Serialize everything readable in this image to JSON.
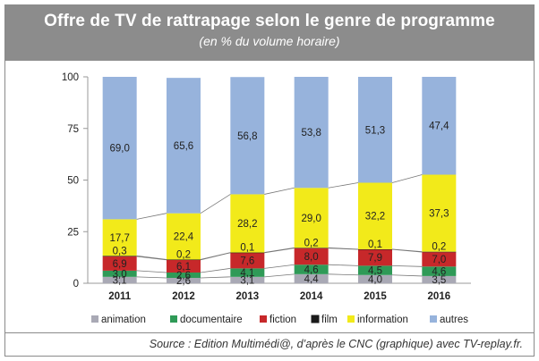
{
  "header": {
    "title": "Offre de TV de rattrapage selon le genre de programme",
    "subtitle": "(en % du volume horaire)"
  },
  "footer": {
    "source": "Source : Edition Multimédi@, d’après le CNC (graphique) avec TV-replay.fr."
  },
  "chart_data": {
    "type": "bar",
    "stacked": true,
    "categories": [
      "2011",
      "2012",
      "2013",
      "2014",
      "2015",
      "2016"
    ],
    "ylim": [
      0,
      100
    ],
    "yticks": [
      0,
      25,
      50,
      75,
      100
    ],
    "grid": false,
    "legend_position": "bottom",
    "series": [
      {
        "name": "animation",
        "color": "#a9a9b5",
        "values": [
          3.1,
          2.6,
          3.1,
          4.4,
          4.0,
          3.5
        ],
        "labels": [
          "3,1",
          "2,6",
          "3,1",
          "4,4",
          "4,0",
          "3,5"
        ]
      },
      {
        "name": "documentaire",
        "color": "#2f9a57",
        "values": [
          3.0,
          2.6,
          4.1,
          4.6,
          4.5,
          4.6
        ],
        "labels": [
          "3,0",
          "2,6",
          "4,1",
          "4,6",
          "4,5",
          "4,6"
        ]
      },
      {
        "name": "fiction",
        "color": "#c7282a",
        "values": [
          6.9,
          6.1,
          7.6,
          8.0,
          7.9,
          7.0
        ],
        "labels": [
          "6,9",
          "6,1",
          "7,6",
          "8,0",
          "7,9",
          "7,0"
        ]
      },
      {
        "name": "film",
        "color": "#1a1a1a",
        "values": [
          0.3,
          0.2,
          0.1,
          0.2,
          0.1,
          0.2
        ],
        "labels": [
          "0,3",
          "0,2",
          "0,1",
          "0,2",
          "0,1",
          "0,2"
        ]
      },
      {
        "name": "information",
        "color": "#f2ea1a",
        "values": [
          17.7,
          22.4,
          28.2,
          29.0,
          32.2,
          37.3
        ],
        "labels": [
          "17,7",
          "22,4",
          "28,2",
          "29,0",
          "32,2",
          "37,3"
        ]
      },
      {
        "name": "autres",
        "color": "#97b3dc",
        "values": [
          69.0,
          65.6,
          56.8,
          53.8,
          51.3,
          47.4
        ],
        "labels": [
          "69,0",
          "65,6",
          "56,8",
          "53,8",
          "51,3",
          "47,4"
        ]
      }
    ]
  }
}
